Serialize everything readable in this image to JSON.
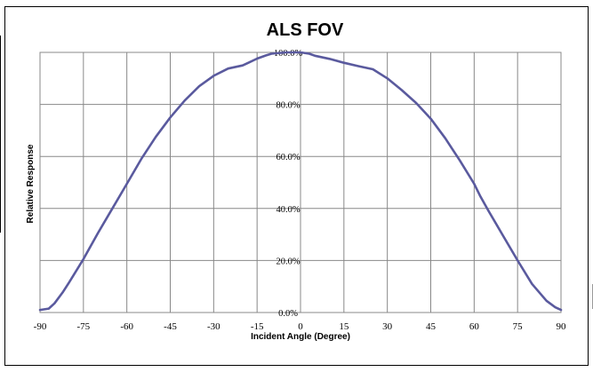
{
  "chart_data": {
    "type": "line",
    "title": "ALS FOV",
    "xlabel": "Incident Angle (Degree)",
    "ylabel": "Relative Response",
    "xlim": [
      -90,
      90
    ],
    "ylim": [
      0,
      100
    ],
    "x_ticks": [
      "-90",
      "-75",
      "-60",
      "-45",
      "-30",
      "-15",
      "0",
      "15",
      "30",
      "45",
      "60",
      "75",
      "90"
    ],
    "y_ticks": [
      "0.0%",
      "20.0%",
      "40.0%",
      "60.0%",
      "80.0%",
      "100.0%"
    ],
    "grid": true,
    "legend": false,
    "line_color": "#5a5a9e",
    "series": [
      {
        "x": [
          -90,
          -87,
          -85,
          -82,
          -80,
          -75,
          -70,
          -65,
          -60,
          -55,
          -50,
          -45,
          -40,
          -35,
          -30,
          -25,
          -20,
          -18,
          -15,
          -12,
          -10,
          -5,
          0,
          3,
          5,
          10,
          15,
          20,
          25,
          30,
          35,
          40,
          45,
          50,
          55,
          60,
          62,
          65,
          70,
          75,
          80,
          85,
          88,
          90
        ],
        "y": [
          1,
          1.5,
          3.5,
          8,
          11.5,
          20.5,
          30.5,
          40,
          49.5,
          59,
          67.5,
          75,
          81.5,
          87,
          91,
          93.8,
          95,
          96,
          97.6,
          98.8,
          99.5,
          100,
          100,
          99.5,
          98.7,
          97.5,
          96,
          94.7,
          93.5,
          90,
          85.5,
          80.5,
          74.5,
          67,
          58.5,
          49.5,
          45,
          39,
          29.5,
          20,
          11,
          4.5,
          2,
          1
        ]
      }
    ]
  }
}
